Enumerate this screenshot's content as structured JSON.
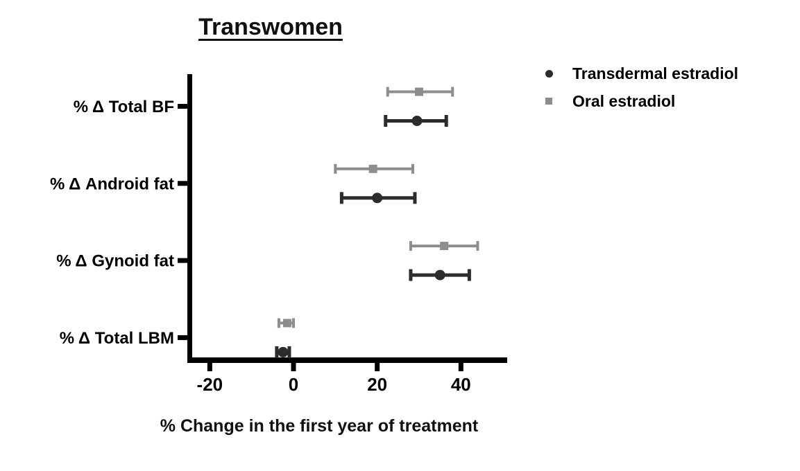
{
  "title": "Transwomen",
  "chart_data": {
    "type": "scatter",
    "variant": "horizontal error-bar dot plot (forest plot)",
    "title": "Transwomen",
    "xlabel": "% Change in the first year of treatment",
    "ylabel": "",
    "categories": [
      "% Δ Total BF",
      "% Δ Android fat",
      "% Δ Gynoid fat",
      "% Δ Total LBM"
    ],
    "x_ticks": [
      -20,
      0,
      20,
      40
    ],
    "x_tick_labels": [
      "-20",
      "0",
      "20",
      "40"
    ],
    "xlim": [
      -25,
      51
    ],
    "grid": false,
    "legend_position": "top-right",
    "axis_color": "#000000",
    "series": [
      {
        "name": "Transdermal estradiol",
        "marker": "circle",
        "color": "#2c2c2c",
        "row_in_group": "bottom",
        "values": [
          {
            "category": "% Δ Total BF",
            "mean": 29.5,
            "low": 22,
            "high": 36.5
          },
          {
            "category": "% Δ Android fat",
            "mean": 20,
            "low": 11.5,
            "high": 29
          },
          {
            "category": "% Δ Gynoid fat",
            "mean": 35,
            "low": 28,
            "high": 42
          },
          {
            "category": "% Δ Total LBM",
            "mean": -2.5,
            "low": -4,
            "high": -1
          }
        ]
      },
      {
        "name": "Oral estradiol",
        "marker": "square",
        "color": "#8d8d8d",
        "row_in_group": "top",
        "values": [
          {
            "category": "% Δ Total BF",
            "mean": 30,
            "low": 22.5,
            "high": 38
          },
          {
            "category": "% Δ Android fat",
            "mean": 19,
            "low": 10,
            "high": 28.5
          },
          {
            "category": "% Δ Gynoid fat",
            "mean": 36,
            "low": 28,
            "high": 44
          },
          {
            "category": "% Δ Total LBM",
            "mean": -1.5,
            "low": -3.5,
            "high": 0
          }
        ]
      }
    ]
  }
}
